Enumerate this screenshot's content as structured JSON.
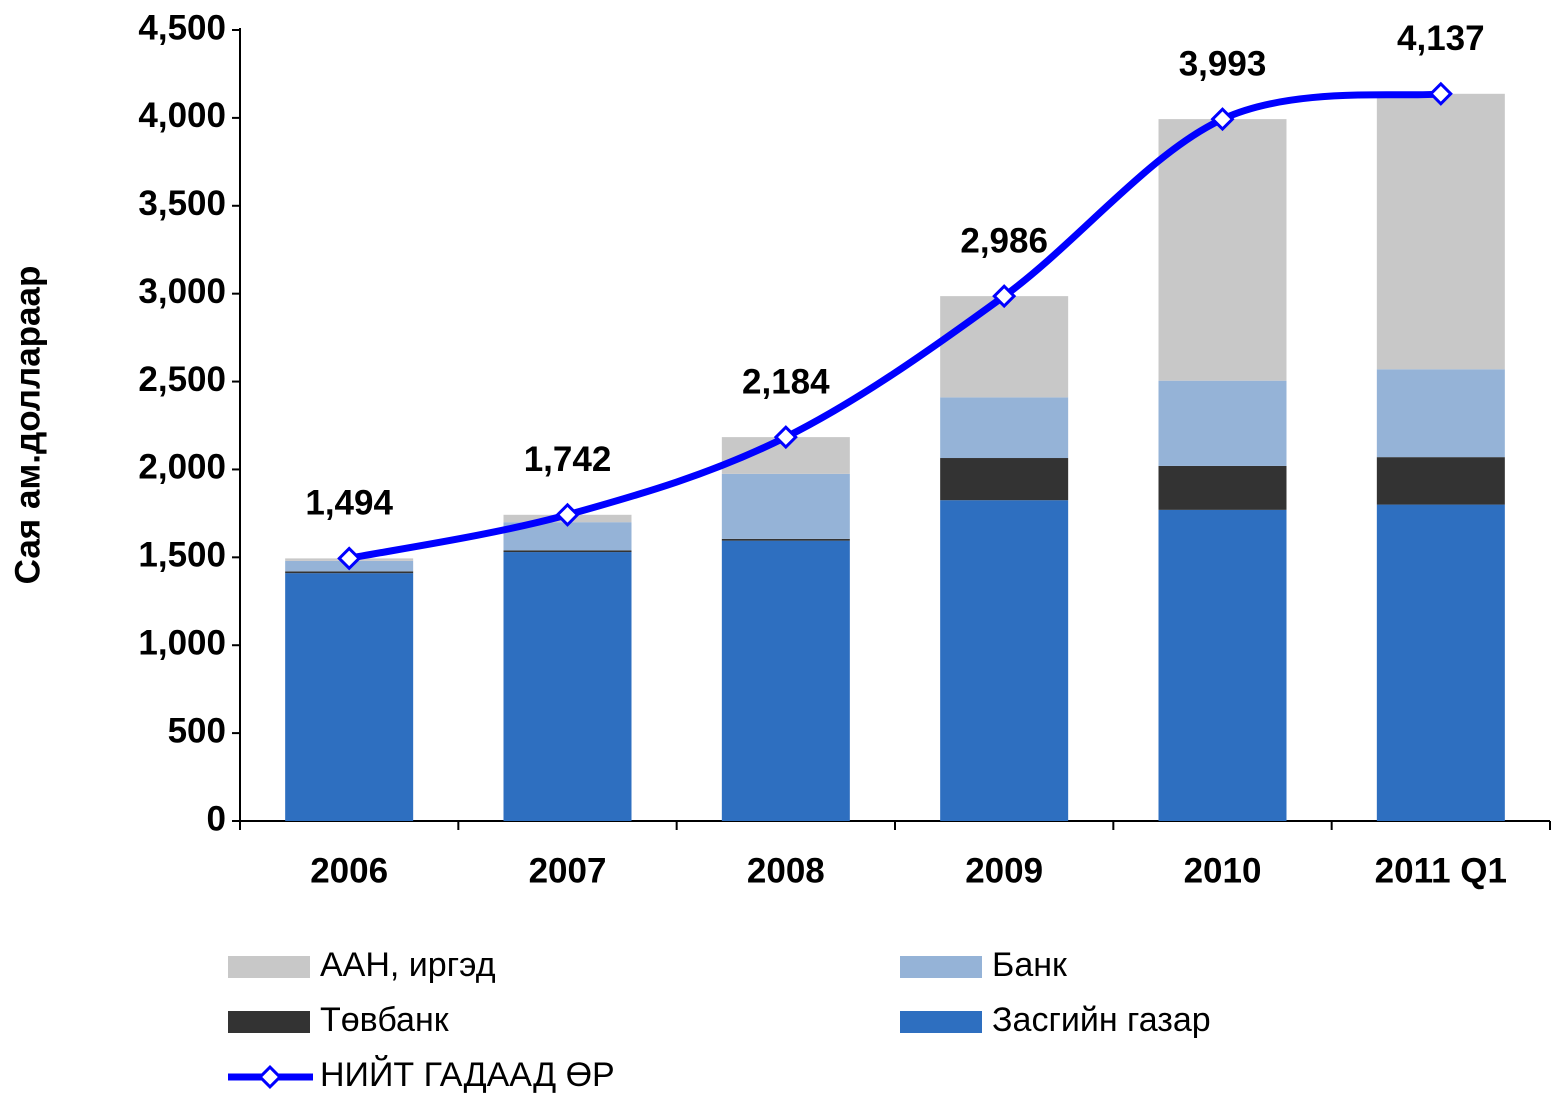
{
  "chart_data": {
    "type": "bar",
    "stacked": true,
    "y_label": "Сая ам.доллараар",
    "categories": [
      "2006",
      "2007",
      "2008",
      "2009",
      "2010",
      "2011 Q1"
    ],
    "series": [
      {
        "name": "Засгийн газар",
        "color": "#2e6fc0",
        "values": [
          1410,
          1530,
          1595,
          1825,
          1770,
          1800
        ]
      },
      {
        "name": "Төвбанк",
        "color": "#333333",
        "values": [
          10,
          10,
          10,
          240,
          250,
          270
        ]
      },
      {
        "name": "Банк",
        "color": "#95b3d7",
        "values": [
          60,
          160,
          370,
          345,
          485,
          500
        ]
      },
      {
        "name": "ААН, иргэд",
        "color": "#c8c8c8",
        "values": [
          14,
          42,
          209,
          576,
          1488,
          1567
        ]
      },
      {
        "name": "НИЙТ ГАДААД ӨР",
        "type": "line",
        "color": "#0000ff",
        "values": [
          1494,
          1742,
          2184,
          2986,
          3993,
          4137
        ],
        "value_labels": [
          "1,494",
          "1,742",
          "2,184",
          "2,986",
          "3,993",
          "4,137"
        ]
      }
    ],
    "ylim": [
      0,
      4500
    ],
    "yticks": [
      0,
      500,
      {
        "value": 1000,
        "label": "1,000"
      },
      {
        "value": 1500,
        "label": "1,500"
      },
      {
        "value": 2000,
        "label": "2,000"
      },
      {
        "value": 2500,
        "label": "2,500"
      },
      {
        "value": 3000,
        "label": "3,000"
      },
      {
        "value": 3500,
        "label": "3,500"
      },
      {
        "value": 4000,
        "label": "4,000"
      },
      {
        "value": 4500,
        "label": "4,500"
      }
    ],
    "grid": false
  }
}
